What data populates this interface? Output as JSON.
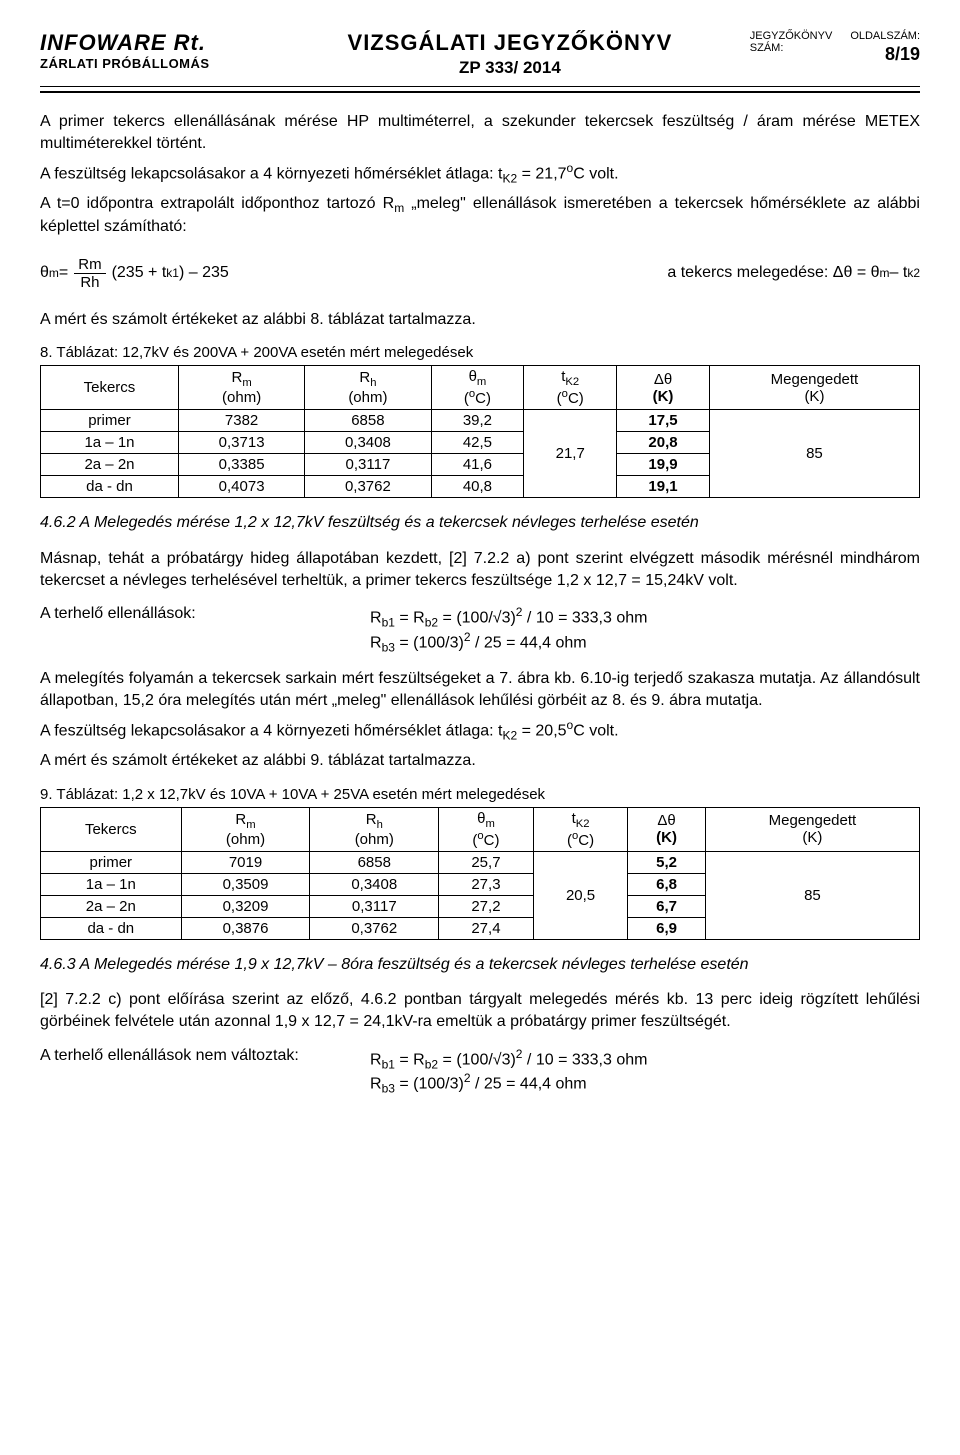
{
  "header": {
    "company": "INFOWARE Rt.",
    "station": "ZÁRLATI PRÓBÁLLOMÁS",
    "title": "VIZSGÁLATI JEGYZŐKÖNYV",
    "doc_num": "ZP 333/ 2014",
    "jegyzokonyv_label": "JEGYZŐKÖNYV SZÁM:",
    "oldalszam_label": "OLDALSZÁM:",
    "page_num": "8/19"
  },
  "para1": "A primer tekercs ellenállásának mérése HP multiméterrel, a szekunder tekercsek feszültség / áram mérése METEX multiméterekkel történt.",
  "para2a": "A feszültség lekapcsolásakor a 4 környezeti hőmérséklet átlaga: t",
  "para2b": " = 21,7",
  "para2c": "C volt.",
  "para3a": "A t=0 időpontra extrapolált időponthoz tartozó R",
  "para3b": " „meleg\" ellenállások ismeretében a tekercsek hőmérséklete az alábbi képlettel számítható:",
  "formula": {
    "lhs": "θ",
    "lhs_sub": "m",
    "eq": " = ",
    "num": "Rm",
    "den": "Rh",
    "rest1": " (235 + t",
    "rest1_sub": "k1",
    "rest2": ") – 235",
    "rhs_label": "a tekercs melegedése:  Δθ = θ",
    "rhs_sub1": "m",
    "rhs_mid": " – t",
    "rhs_sub2": "k2"
  },
  "para4": "A mért és számolt értékeket az alábbi 8. táblázat tartalmazza.",
  "table8": {
    "caption": "8. Táblázat: 12,7kV és 200VA + 200VA esetén mért melegedések",
    "headers": {
      "c0": "Tekercs",
      "c1a": "R",
      "c1sub": "m",
      "c1b": "(ohm)",
      "c2a": "R",
      "c2sub": "h",
      "c2b": "(ohm)",
      "c3a": "θ",
      "c3sub": "m",
      "c3b": "(",
      "c3sup": "o",
      "c3c": "C)",
      "c4a": "t",
      "c4sub": "K2",
      "c4b": "(",
      "c4sup": "o",
      "c4c": "C)",
      "c5a": "Δθ",
      "c5b": "(K)",
      "c6a": "Megengedett",
      "c6b": "(K)"
    },
    "rows": [
      [
        "primer",
        "7382",
        "6858",
        "39,2",
        "",
        "17,5",
        ""
      ],
      [
        "1a – 1n",
        "0,3713",
        "0,3408",
        "42,5",
        "21,7",
        "20,8",
        "85"
      ],
      [
        "2a – 2n",
        "0,3385",
        "0,3117",
        "41,6",
        "",
        "19,9",
        ""
      ],
      [
        "da - dn",
        "0,4073",
        "0,3762",
        "40,8",
        "",
        "19,1",
        ""
      ]
    ],
    "tk2_merged": "21,7",
    "allowed_merged": "85"
  },
  "sub462": "4.6.2  A Melegedés mérése 1,2 x 12,7kV feszültség és a tekercsek névleges terhelése esetén",
  "para5": "Másnap, tehát a próbatárgy hideg állapotában kezdett, [2] 7.2.2 a) pont szerint elvégzett második mérésnél mindhárom tekercset a névleges terhelésével terheltük, a primer tekercs feszültsége 1,2 x 12,7 = 15,24kV  volt.",
  "loadres": {
    "label": "A terhelő ellenállások:",
    "eq1a": "R",
    "eq1sub1": "b1",
    "eq1mid": " = R",
    "eq1sub2": "b2",
    "eq1b": " = (100/√3)",
    "eq1sup": "2",
    "eq1c": " / 10 = 333,3 ohm",
    "eq2a": "R",
    "eq2sub": "b3",
    "eq2b": " = (100/3)",
    "eq2sup": "2",
    "eq2c": " / 25 = 44,4 ohm"
  },
  "para6": "A melegítés folyamán a tekercsek sarkain mért feszültségeket a 7. ábra kb. 6.10-ig terjedő szakasza mutatja. Az állandósult állapotban, 15,2 óra melegítés után mért „meleg\" ellenállások lehűlési görbéit az 8. és 9. ábra mutatja.",
  "para7a": "A feszültség lekapcsolásakor a 4 környezeti hőmérséklet átlaga: t",
  "para7b": " = 20,5",
  "para7c": "C volt.",
  "para8": "A mért és számolt értékeket az alábbi 9. táblázat tartalmazza.",
  "table9": {
    "caption": "9. Táblázat:    1,2 x 12,7kV és 10VA + 10VA + 25VA esetén mért melegedések",
    "rows": [
      [
        "primer",
        "7019",
        "6858",
        "25,7",
        "",
        "5,2",
        ""
      ],
      [
        "1a – 1n",
        "0,3509",
        "0,3408",
        "27,3",
        "20,5",
        "6,8",
        "85"
      ],
      [
        "2a – 2n",
        "0,3209",
        "0,3117",
        "27,2",
        "",
        "6,7",
        ""
      ],
      [
        "da - dn",
        "0,3876",
        "0,3762",
        "27,4",
        "",
        "6,9",
        ""
      ]
    ],
    "tk2_merged": "20,5",
    "allowed_merged": "85"
  },
  "sub463": "4.6.3  A Melegedés mérése 1,9 x 12,7kV – 8óra feszültség és a tekercsek névleges terhelése esetén",
  "para9": "[2] 7.2.2 c) pont előírása szerint az előző, 4.6.2 pontban tárgyalt melegedés mérés kb. 13 perc ideig rögzített lehűlési görbéinek felvétele után azonnal 1,9 x 12,7 =  24,1kV-ra emeltük a próbatárgy primer feszültségét.",
  "loadres2": {
    "label": "A terhelő ellenállások nem változtak:"
  }
}
